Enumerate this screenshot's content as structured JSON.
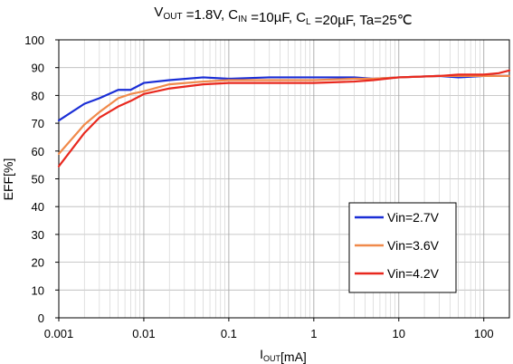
{
  "chart_data": {
    "type": "line",
    "title_parts": [
      {
        "text": "V",
        "sub": false
      },
      {
        "text": "OUT",
        "sub": true
      },
      {
        "text": "  =1.8V, C",
        "sub": false
      },
      {
        "text": "IN",
        "sub": true
      },
      {
        "text": " =10µF, C",
        "sub": false
      },
      {
        "text": "L",
        "sub": true
      },
      {
        "text": " =20µF, Ta=25℃",
        "sub": false
      }
    ],
    "ylabel": "EFF[%]",
    "xlabel_parts": [
      {
        "text": "I",
        "sub": false
      },
      {
        "text": "OUT",
        "sub": true
      },
      {
        "text": "[mA]",
        "sub": false
      }
    ],
    "x_scale": "log",
    "xlim": [
      0.001,
      200
    ],
    "ylim": [
      0,
      100
    ],
    "x_ticks": [
      0.001,
      0.01,
      0.1,
      1,
      10,
      100
    ],
    "x_tick_labels": [
      "0.001",
      "0.01",
      "0.1",
      "1",
      "10",
      "100"
    ],
    "y_ticks": [
      0,
      10,
      20,
      30,
      40,
      50,
      60,
      70,
      80,
      90,
      100
    ],
    "y_tick_labels": [
      "0",
      "10",
      "20",
      "30",
      "40",
      "50",
      "60",
      "70",
      "80",
      "90",
      "100"
    ],
    "grid": true,
    "legend_position": "right",
    "series": [
      {
        "name": "Vin=2.7V",
        "color": "#1a2ed6",
        "x": [
          0.001,
          0.002,
          0.003,
          0.005,
          0.007,
          0.01,
          0.02,
          0.05,
          0.1,
          0.3,
          0.5,
          1,
          3,
          5,
          10,
          30,
          50,
          100,
          200
        ],
        "y": [
          71,
          77,
          79,
          82,
          82,
          84.5,
          85.5,
          86.5,
          86,
          86.5,
          86.5,
          86.5,
          86.5,
          86,
          86.5,
          87,
          86.5,
          87,
          87
        ]
      },
      {
        "name": "Vin=3.6V",
        "color": "#f08a4b",
        "x": [
          0.001,
          0.002,
          0.003,
          0.005,
          0.007,
          0.01,
          0.02,
          0.05,
          0.1,
          0.3,
          0.5,
          1,
          3,
          5,
          10,
          30,
          50,
          100,
          200
        ],
        "y": [
          59,
          69.5,
          74,
          79,
          80.5,
          81.5,
          84,
          85,
          85.5,
          85.5,
          85.5,
          85.5,
          86,
          86,
          86.5,
          87,
          87,
          87,
          87
        ]
      },
      {
        "name": "Vin=4.2V",
        "color": "#e8281e",
        "x": [
          0.001,
          0.002,
          0.003,
          0.005,
          0.007,
          0.01,
          0.02,
          0.05,
          0.1,
          0.3,
          0.5,
          1,
          3,
          5,
          10,
          30,
          50,
          100,
          150,
          200
        ],
        "y": [
          54.5,
          66.5,
          72,
          76,
          78,
          80.5,
          82.5,
          84,
          84.5,
          84.5,
          84.5,
          84.5,
          85,
          85.5,
          86.5,
          87,
          87.5,
          87.5,
          88,
          89
        ]
      }
    ]
  }
}
